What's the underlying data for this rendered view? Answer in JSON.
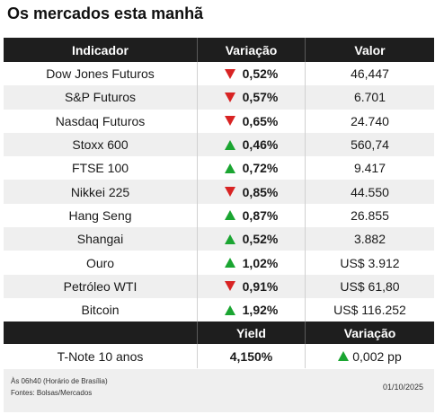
{
  "title": "Os mercados esta manhã",
  "headers": {
    "indicador": "Indicador",
    "variacao": "Variação",
    "valor": "Valor"
  },
  "rows": [
    {
      "name": "Dow Jones Futuros",
      "dir": "down",
      "change": "0,52%",
      "value": "46,447"
    },
    {
      "name": "S&P Futuros",
      "dir": "down",
      "change": "0,57%",
      "value": "6.701"
    },
    {
      "name": "Nasdaq Futuros",
      "dir": "down",
      "change": "0,65%",
      "value": "24.740"
    },
    {
      "name": "Stoxx 600",
      "dir": "up",
      "change": "0,46%",
      "value": "560,74"
    },
    {
      "name": "FTSE 100",
      "dir": "up",
      "change": "0,72%",
      "value": "9.417"
    },
    {
      "name": "Nikkei 225",
      "dir": "down",
      "change": "0,85%",
      "value": "44.550"
    },
    {
      "name": "Hang Seng",
      "dir": "up",
      "change": "0,87%",
      "value": "26.855"
    },
    {
      "name": "Shangai",
      "dir": "up",
      "change": "0,52%",
      "value": "3.882"
    },
    {
      "name": "Ouro",
      "dir": "up",
      "change": "1,02%",
      "value": "US$ 3.912"
    },
    {
      "name": "Petróleo WTI",
      "dir": "down",
      "change": "0,91%",
      "value": "US$ 61,80"
    },
    {
      "name": "Bitcoin",
      "dir": "up",
      "change": "1,92%",
      "value": "US$ 116.252"
    }
  ],
  "yield_headers": {
    "yield": "Yield",
    "variacao": "Variação"
  },
  "yield_row": {
    "name": "T-Note 10 anos",
    "yield": "4,150%",
    "dir": "up",
    "change": "0,002 pp"
  },
  "footer": {
    "time_note": "Às 06h40 (Horário de Brasília)",
    "sources": "Fontes: Bolsas/Mercados",
    "date": "01/10/2025"
  },
  "colors": {
    "up": "#1aa531",
    "down": "#d82323",
    "header_bg": "#1e1e1e",
    "alt_row": "#efefef"
  },
  "icons": {
    "up": "triangle-up-icon",
    "down": "triangle-down-icon"
  }
}
